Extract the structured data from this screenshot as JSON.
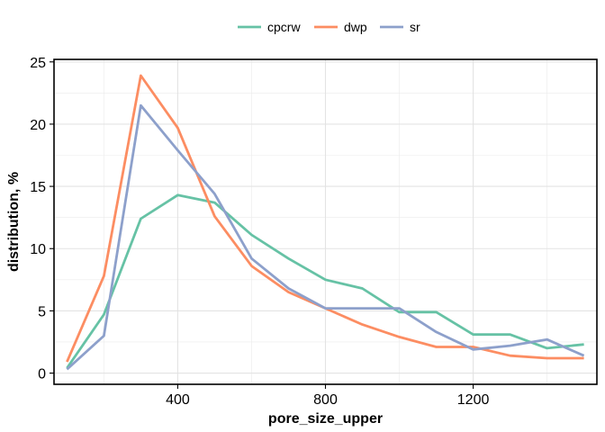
{
  "chart_data": {
    "type": "line",
    "xlabel": "pore_size_upper",
    "ylabel": "distribution, %",
    "xlim": [
      65,
      1535
    ],
    "ylim": [
      -0.9,
      25.2
    ],
    "xticks": [
      400,
      800,
      1200
    ],
    "yticks": [
      0,
      5,
      10,
      15,
      20,
      25
    ],
    "grid": true,
    "legend_position": "top",
    "x": [
      100,
      200,
      300,
      400,
      500,
      600,
      700,
      800,
      900,
      1000,
      1100,
      1200,
      1300,
      1400,
      1500
    ],
    "series": [
      {
        "name": "cpcrw",
        "color": "#66c2a5",
        "values": [
          0.4,
          4.7,
          12.4,
          14.3,
          13.7,
          11.1,
          9.2,
          7.5,
          6.8,
          4.9,
          4.9,
          3.1,
          3.1,
          2.0,
          2.3
        ]
      },
      {
        "name": "dwp",
        "color": "#fc8d62",
        "values": [
          0.9,
          7.8,
          23.9,
          19.7,
          12.6,
          8.6,
          6.5,
          5.2,
          3.9,
          2.9,
          2.1,
          2.1,
          1.4,
          1.2,
          1.2
        ]
      },
      {
        "name": "sr",
        "color": "#8da0cb",
        "values": [
          0.3,
          3.0,
          21.5,
          17.9,
          14.4,
          9.2,
          6.8,
          5.2,
          5.2,
          5.2,
          3.3,
          1.9,
          2.2,
          2.7,
          1.4
        ]
      }
    ]
  }
}
